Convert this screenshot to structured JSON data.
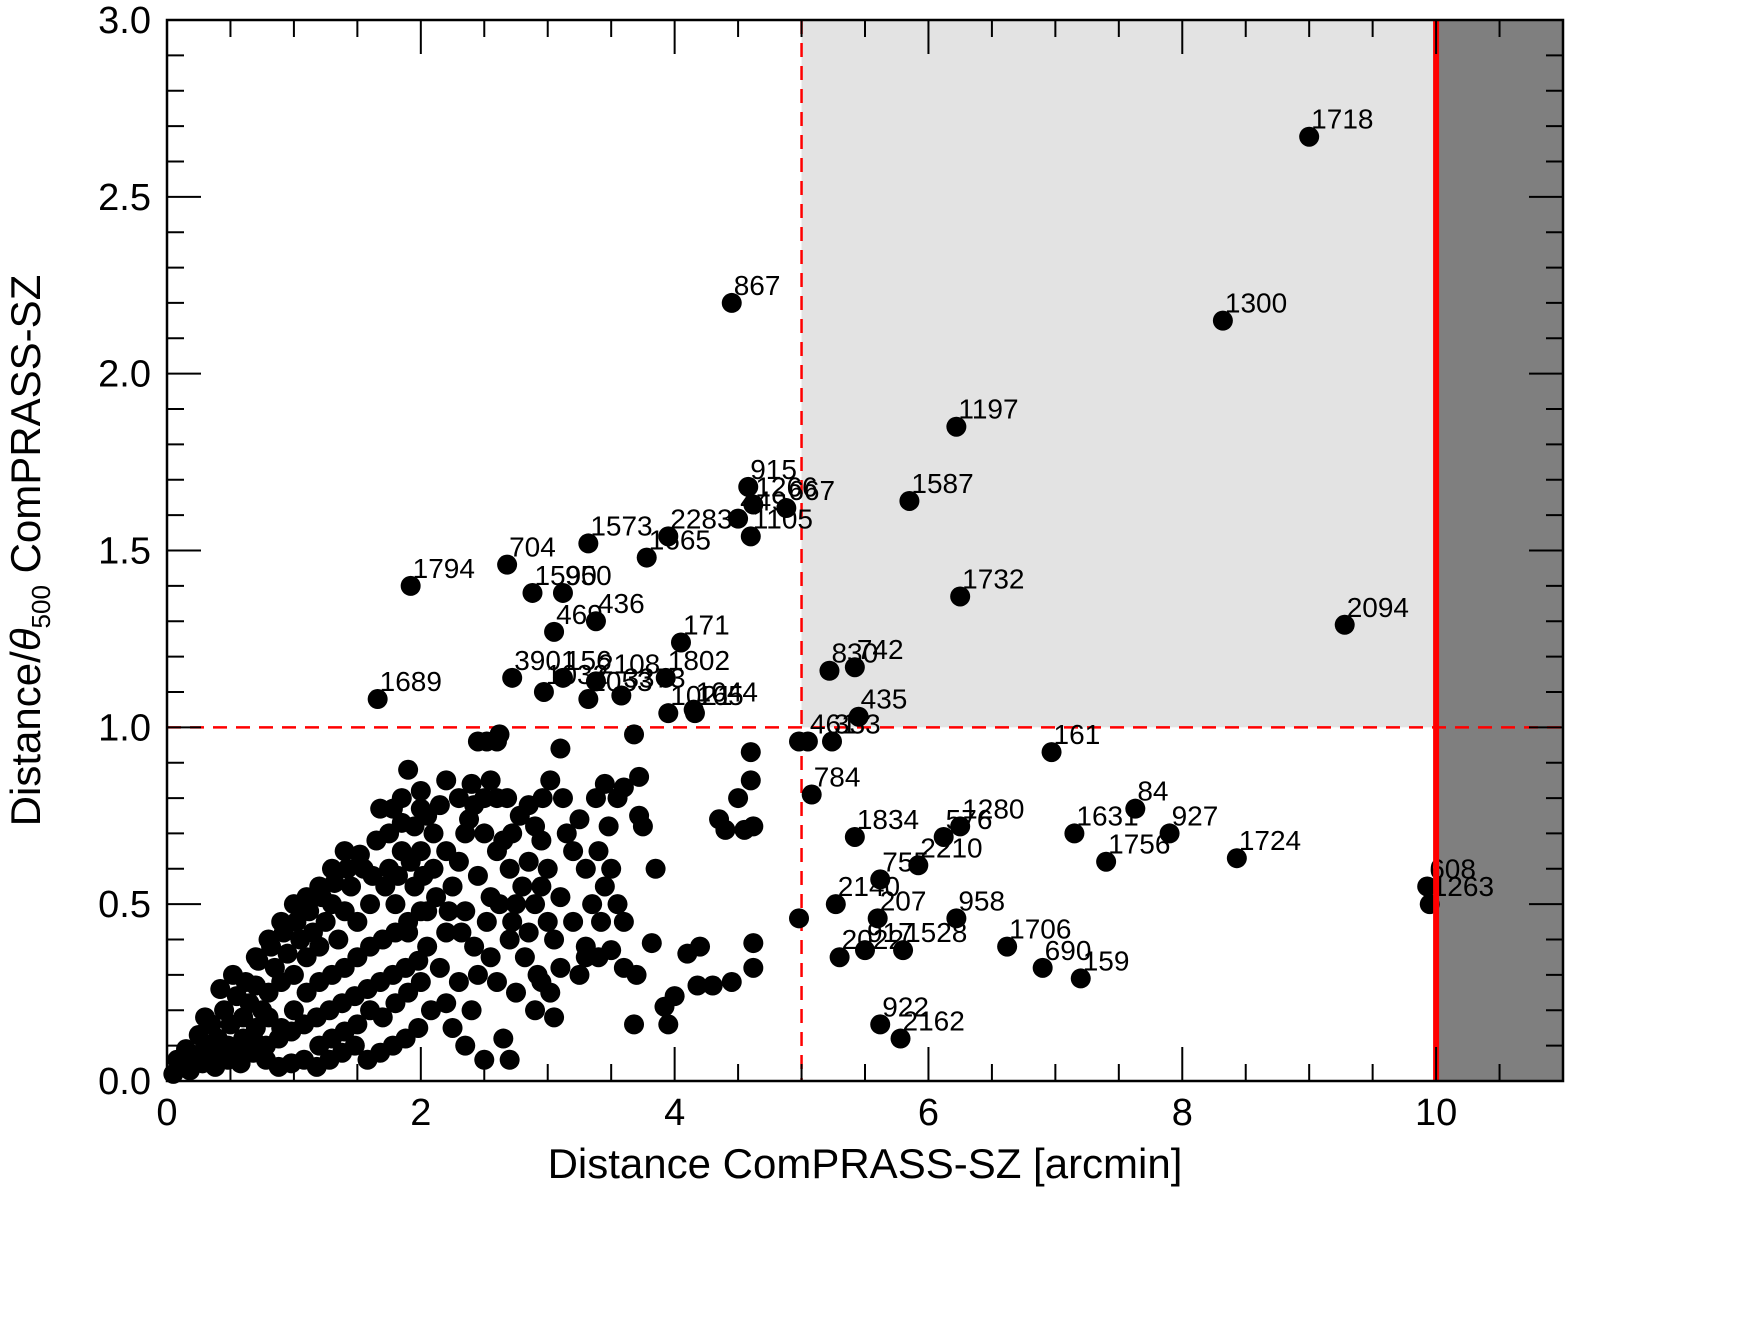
{
  "chart_data": {
    "type": "scatter",
    "xlabel": "Distance ComPRASS-SZ [arcmin]",
    "ylabel": {
      "prefix": "Distance/",
      "theta": "θ",
      "sub": "500",
      "suffix": " ComPRASS-SZ"
    },
    "xlim": [
      0,
      11
    ],
    "ylim": [
      0,
      3.0
    ],
    "x_ticks": [
      0,
      2,
      4,
      6,
      8,
      10
    ],
    "y_ticks": [
      "0.0",
      "0.5",
      "1.0",
      "1.5",
      "2.0",
      "2.5",
      "3.0"
    ],
    "x_minor_step": 0.5,
    "y_minor_step": 0.1,
    "shaded_region": {
      "x": [
        5,
        10
      ],
      "y": [
        1.0,
        3.0
      ],
      "color": "#e3e3e3"
    },
    "excluded_region": {
      "x": [
        10,
        11
      ],
      "color": "#7f7f7f"
    },
    "dashed_lines": {
      "x": 5,
      "y": 1.0,
      "color": "#ff0000"
    },
    "cutoff_line": {
      "x": 10,
      "color": "#ff0000"
    },
    "labeled_points": [
      {
        "id": "1718",
        "x": 9.0,
        "y": 2.67
      },
      {
        "id": "867",
        "x": 4.45,
        "y": 2.2
      },
      {
        "id": "1300",
        "x": 8.32,
        "y": 2.15
      },
      {
        "id": "1197",
        "x": 6.22,
        "y": 1.85
      },
      {
        "id": "915",
        "x": 4.58,
        "y": 1.68
      },
      {
        "id": "1587",
        "x": 5.85,
        "y": 1.64
      },
      {
        "id": "1266",
        "x": 4.62,
        "y": 1.63
      },
      {
        "id": "667",
        "x": 4.88,
        "y": 1.62
      },
      {
        "id": "449",
        "x": 4.5,
        "y": 1.59
      },
      {
        "id": "1105",
        "x": 4.6,
        "y": 1.54
      },
      {
        "id": "1573",
        "x": 3.32,
        "y": 1.52
      },
      {
        "id": "2283",
        "x": 3.95,
        "y": 1.54
      },
      {
        "id": "1665",
        "x": 3.78,
        "y": 1.48
      },
      {
        "id": "704",
        "x": 2.68,
        "y": 1.46
      },
      {
        "id": "1794",
        "x": 1.92,
        "y": 1.4
      },
      {
        "id": "1590",
        "x": 2.88,
        "y": 1.38
      },
      {
        "id": "950",
        "x": 3.12,
        "y": 1.38
      },
      {
        "id": "1732",
        "x": 6.25,
        "y": 1.37
      },
      {
        "id": "2094",
        "x": 9.28,
        "y": 1.29
      },
      {
        "id": "469",
        "x": 3.05,
        "y": 1.27
      },
      {
        "id": "436",
        "x": 3.38,
        "y": 1.3
      },
      {
        "id": "171",
        "x": 4.05,
        "y": 1.24
      },
      {
        "id": "830",
        "x": 5.22,
        "y": 1.16
      },
      {
        "id": "742",
        "x": 5.42,
        "y": 1.17
      },
      {
        "id": "3901",
        "x": 2.72,
        "y": 1.14
      },
      {
        "id": "156",
        "x": 3.12,
        "y": 1.14
      },
      {
        "id": "1802",
        "x": 3.93,
        "y": 1.14
      },
      {
        "id": "2108",
        "x": 3.38,
        "y": 1.13
      },
      {
        "id": "1032",
        "x": 2.97,
        "y": 1.1
      },
      {
        "id": "2053",
        "x": 3.32,
        "y": 1.08
      },
      {
        "id": "3373",
        "x": 3.58,
        "y": 1.09
      },
      {
        "id": "1689",
        "x": 1.66,
        "y": 1.08
      },
      {
        "id": "1021",
        "x": 3.95,
        "y": 1.04
      },
      {
        "id": "1044",
        "x": 4.15,
        "y": 1.05
      },
      {
        "id": "165",
        "x": 4.16,
        "y": 1.04
      },
      {
        "id": "435",
        "x": 5.45,
        "y": 1.03
      },
      {
        "id": "461",
        "x": 5.05,
        "y": 0.96
      },
      {
        "id": "333",
        "x": 5.24,
        "y": 0.96
      },
      {
        "id": "161",
        "x": 6.97,
        "y": 0.93
      },
      {
        "id": "784",
        "x": 5.08,
        "y": 0.81
      },
      {
        "id": "84",
        "x": 7.63,
        "y": 0.77
      },
      {
        "id": "1280",
        "x": 6.25,
        "y": 0.72
      },
      {
        "id": "576",
        "x": 6.12,
        "y": 0.69
      },
      {
        "id": "1834",
        "x": 5.42,
        "y": 0.69
      },
      {
        "id": "1631",
        "x": 7.15,
        "y": 0.7
      },
      {
        "id": "927",
        "x": 7.9,
        "y": 0.7
      },
      {
        "id": "1756",
        "x": 7.4,
        "y": 0.62
      },
      {
        "id": "1724",
        "x": 8.43,
        "y": 0.63
      },
      {
        "id": "2210",
        "x": 5.92,
        "y": 0.61
      },
      {
        "id": "755",
        "x": 5.62,
        "y": 0.57
      },
      {
        "id": "608",
        "x": 9.93,
        "y": 0.55
      },
      {
        "id": "1263",
        "x": 9.95,
        "y": 0.5
      },
      {
        "id": "2140",
        "x": 5.27,
        "y": 0.5
      },
      {
        "id": "207",
        "x": 5.6,
        "y": 0.46
      },
      {
        "id": "958",
        "x": 6.22,
        "y": 0.46
      },
      {
        "id": "1706",
        "x": 6.62,
        "y": 0.38
      },
      {
        "id": "2022",
        "x": 5.3,
        "y": 0.35
      },
      {
        "id": "917",
        "x": 5.5,
        "y": 0.37
      },
      {
        "id": "1528",
        "x": 5.8,
        "y": 0.37
      },
      {
        "id": "690",
        "x": 6.9,
        "y": 0.32
      },
      {
        "id": "159",
        "x": 7.2,
        "y": 0.29
      },
      {
        "id": "922",
        "x": 5.62,
        "y": 0.16
      },
      {
        "id": "2162",
        "x": 5.78,
        "y": 0.12
      }
    ],
    "unlabeled_points": [
      [
        4.62,
        0.72
      ],
      [
        4.55,
        0.71
      ],
      [
        4.35,
        0.74
      ],
      [
        4.4,
        0.71
      ],
      [
        4.5,
        0.8
      ],
      [
        4.6,
        0.85
      ],
      [
        4.6,
        0.93
      ],
      [
        4.98,
        0.96
      ],
      [
        4.98,
        0.46
      ],
      [
        4.62,
        0.39
      ],
      [
        4.62,
        0.32
      ],
      [
        4.45,
        0.28
      ],
      [
        4.3,
        0.27
      ],
      [
        4.18,
        0.27
      ],
      [
        4.2,
        0.38
      ],
      [
        4.1,
        0.36
      ],
      [
        4.0,
        0.24
      ],
      [
        3.92,
        0.21
      ],
      [
        3.95,
        0.16
      ],
      [
        3.68,
        0.16
      ],
      [
        3.82,
        0.39
      ],
      [
        3.68,
        0.98
      ],
      [
        3.72,
        0.86
      ],
      [
        3.6,
        0.83
      ],
      [
        3.55,
        0.8
      ],
      [
        3.45,
        0.84
      ],
      [
        3.38,
        0.8
      ],
      [
        3.3,
        0.6
      ],
      [
        3.2,
        0.65
      ],
      [
        3.48,
        0.72
      ],
      [
        3.4,
        0.65
      ],
      [
        3.5,
        0.6
      ],
      [
        3.45,
        0.55
      ],
      [
        3.75,
        0.72
      ],
      [
        3.85,
        0.6
      ],
      [
        3.72,
        0.75
      ],
      [
        3.55,
        0.5
      ],
      [
        3.6,
        0.45
      ],
      [
        3.42,
        0.45
      ],
      [
        3.3,
        0.38
      ],
      [
        3.4,
        0.35
      ],
      [
        3.25,
        0.3
      ],
      [
        3.5,
        0.37
      ],
      [
        3.6,
        0.32
      ],
      [
        3.7,
        0.3
      ],
      [
        3.1,
        0.94
      ],
      [
        3.02,
        0.85
      ],
      [
        2.96,
        0.8
      ],
      [
        3.12,
        0.8
      ],
      [
        2.85,
        0.78
      ],
      [
        2.78,
        0.75
      ],
      [
        2.9,
        0.72
      ],
      [
        2.72,
        0.7
      ],
      [
        2.6,
        0.96
      ],
      [
        2.62,
        0.98
      ],
      [
        2.52,
        0.96
      ],
      [
        2.45,
        0.96
      ],
      [
        2.55,
        0.85
      ],
      [
        2.5,
        0.8
      ],
      [
        2.6,
        0.8
      ],
      [
        2.68,
        0.8
      ],
      [
        2.42,
        0.78
      ],
      [
        2.38,
        0.74
      ],
      [
        2.35,
        0.7
      ],
      [
        2.2,
        0.85
      ],
      [
        2.15,
        0.78
      ],
      [
        2.05,
        0.75
      ],
      [
        2.0,
        0.77
      ],
      [
        1.9,
        0.88
      ],
      [
        1.85,
        0.73
      ],
      [
        1.78,
        0.77
      ],
      [
        1.68,
        0.77
      ],
      [
        2.5,
        0.7
      ],
      [
        2.6,
        0.65
      ],
      [
        2.7,
        0.6
      ],
      [
        2.8,
        0.55
      ],
      [
        2.9,
        0.5
      ],
      [
        3.0,
        0.45
      ],
      [
        2.85,
        0.42
      ],
      [
        2.7,
        0.4
      ],
      [
        2.55,
        0.35
      ],
      [
        2.45,
        0.3
      ],
      [
        2.6,
        0.28
      ],
      [
        2.75,
        0.25
      ],
      [
        2.9,
        0.2
      ],
      [
        3.05,
        0.18
      ],
      [
        2.95,
        0.28
      ],
      [
        3.1,
        0.32
      ],
      [
        2.65,
        0.12
      ],
      [
        2.7,
        0.06
      ],
      [
        2.5,
        0.06
      ],
      [
        2.35,
        0.1
      ],
      [
        2.25,
        0.15
      ],
      [
        2.2,
        0.22
      ],
      [
        2.4,
        0.2
      ],
      [
        2.3,
        0.28
      ],
      [
        2.15,
        0.32
      ],
      [
        2.05,
        0.38
      ],
      [
        2.2,
        0.42
      ],
      [
        2.35,
        0.48
      ],
      [
        2.25,
        0.55
      ],
      [
        2.1,
        0.6
      ],
      [
        2.0,
        0.65
      ],
      [
        1.95,
        0.55
      ],
      [
        2.05,
        0.48
      ],
      [
        1.9,
        0.42
      ],
      [
        1.8,
        0.5
      ],
      [
        1.75,
        0.6
      ],
      [
        1.85,
        0.65
      ],
      [
        1.65,
        0.68
      ],
      [
        1.55,
        0.6
      ],
      [
        1.6,
        0.5
      ],
      [
        1.5,
        0.45
      ],
      [
        1.45,
        0.55
      ],
      [
        1.4,
        0.48
      ],
      [
        1.35,
        0.4
      ],
      [
        1.3,
        0.5
      ],
      [
        1.25,
        0.45
      ],
      [
        1.2,
        0.38
      ],
      [
        1.15,
        0.42
      ],
      [
        1.1,
        0.35
      ],
      [
        1.05,
        0.4
      ],
      [
        1.0,
        0.3
      ],
      [
        0.95,
        0.36
      ],
      [
        0.9,
        0.28
      ],
      [
        0.85,
        0.32
      ],
      [
        0.8,
        0.25
      ],
      [
        0.75,
        0.2
      ],
      [
        0.7,
        0.27
      ],
      [
        0.65,
        0.22
      ],
      [
        0.6,
        0.18
      ],
      [
        0.55,
        0.24
      ],
      [
        0.5,
        0.16
      ],
      [
        0.45,
        0.2
      ],
      [
        0.4,
        0.12
      ],
      [
        0.35,
        0.16
      ],
      [
        0.3,
        0.1
      ],
      [
        0.25,
        0.13
      ],
      [
        0.2,
        0.07
      ],
      [
        0.15,
        0.09
      ],
      [
        0.1,
        0.04
      ],
      [
        0.05,
        0.02
      ],
      [
        0.08,
        0.06
      ],
      [
        0.18,
        0.03
      ],
      [
        0.28,
        0.05
      ],
      [
        0.38,
        0.04
      ],
      [
        0.48,
        0.06
      ],
      [
        0.58,
        0.05
      ],
      [
        0.68,
        0.08
      ],
      [
        0.78,
        0.1
      ],
      [
        0.88,
        0.12
      ],
      [
        0.98,
        0.14
      ],
      [
        1.08,
        0.16
      ],
      [
        1.18,
        0.18
      ],
      [
        1.28,
        0.2
      ],
      [
        1.38,
        0.22
      ],
      [
        1.48,
        0.24
      ],
      [
        1.58,
        0.26
      ],
      [
        1.68,
        0.28
      ],
      [
        1.78,
        0.3
      ],
      [
        1.88,
        0.32
      ],
      [
        1.98,
        0.34
      ],
      [
        2.08,
        0.2
      ],
      [
        1.98,
        0.15
      ],
      [
        1.88,
        0.12
      ],
      [
        1.78,
        0.1
      ],
      [
        1.68,
        0.08
      ],
      [
        1.58,
        0.06
      ],
      [
        1.48,
        0.1
      ],
      [
        1.38,
        0.08
      ],
      [
        1.28,
        0.06
      ],
      [
        1.18,
        0.04
      ],
      [
        1.08,
        0.06
      ],
      [
        0.98,
        0.05
      ],
      [
        0.88,
        0.04
      ],
      [
        0.78,
        0.06
      ],
      [
        0.68,
        0.12
      ],
      [
        0.58,
        0.1
      ],
      [
        0.48,
        0.1
      ],
      [
        0.38,
        0.08
      ],
      [
        0.3,
        0.18
      ],
      [
        0.42,
        0.26
      ],
      [
        0.52,
        0.3
      ],
      [
        0.62,
        0.28
      ],
      [
        0.72,
        0.34
      ],
      [
        0.82,
        0.38
      ],
      [
        0.92,
        0.42
      ],
      [
        1.02,
        0.45
      ],
      [
        1.12,
        0.48
      ],
      [
        1.22,
        0.52
      ],
      [
        1.32,
        0.56
      ],
      [
        1.42,
        0.6
      ],
      [
        1.52,
        0.64
      ],
      [
        1.62,
        0.58
      ],
      [
        1.72,
        0.55
      ],
      [
        1.82,
        0.58
      ],
      [
        1.92,
        0.62
      ],
      [
        2.02,
        0.58
      ],
      [
        2.12,
        0.52
      ],
      [
        2.22,
        0.48
      ],
      [
        2.32,
        0.42
      ],
      [
        2.42,
        0.38
      ],
      [
        2.52,
        0.45
      ],
      [
        2.62,
        0.5
      ],
      [
        2.72,
        0.45
      ],
      [
        2.82,
        0.35
      ],
      [
        2.92,
        0.3
      ],
      [
        3.02,
        0.25
      ],
      [
        1.0,
        0.2
      ],
      [
        1.1,
        0.25
      ],
      [
        1.2,
        0.28
      ],
      [
        1.3,
        0.3
      ],
      [
        1.4,
        0.32
      ],
      [
        1.5,
        0.35
      ],
      [
        1.6,
        0.38
      ],
      [
        1.7,
        0.4
      ],
      [
        1.8,
        0.42
      ],
      [
        1.9,
        0.45
      ],
      [
        2.0,
        0.48
      ],
      [
        1.6,
        0.2
      ],
      [
        1.7,
        0.18
      ],
      [
        1.8,
        0.22
      ],
      [
        1.9,
        0.25
      ],
      [
        2.0,
        0.28
      ],
      [
        0.9,
        0.15
      ],
      [
        0.8,
        0.18
      ],
      [
        0.7,
        0.15
      ],
      [
        0.6,
        0.12
      ],
      [
        1.2,
        0.1
      ],
      [
        1.3,
        0.12
      ],
      [
        1.4,
        0.14
      ],
      [
        1.5,
        0.16
      ],
      [
        3.3,
        0.35
      ],
      [
        3.2,
        0.45
      ],
      [
        3.1,
        0.52
      ],
      [
        3.0,
        0.6
      ],
      [
        2.95,
        0.68
      ],
      [
        3.15,
        0.7
      ],
      [
        3.25,
        0.74
      ],
      [
        3.35,
        0.5
      ],
      [
        2.3,
        0.62
      ],
      [
        2.45,
        0.58
      ],
      [
        2.55,
        0.52
      ],
      [
        2.65,
        0.68
      ],
      [
        2.75,
        0.5
      ],
      [
        2.85,
        0.62
      ],
      [
        2.95,
        0.55
      ],
      [
        3.05,
        0.4
      ],
      [
        1.4,
        0.65
      ],
      [
        1.3,
        0.6
      ],
      [
        1.2,
        0.55
      ],
      [
        1.1,
        0.52
      ],
      [
        1.0,
        0.5
      ],
      [
        0.9,
        0.45
      ],
      [
        0.8,
        0.4
      ],
      [
        0.7,
        0.35
      ],
      [
        2.1,
        0.7
      ],
      [
        2.2,
        0.65
      ],
      [
        1.95,
        0.72
      ],
      [
        1.75,
        0.7
      ],
      [
        1.85,
        0.8
      ],
      [
        2.0,
        0.82
      ],
      [
        2.3,
        0.8
      ],
      [
        2.4,
        0.84
      ]
    ]
  }
}
